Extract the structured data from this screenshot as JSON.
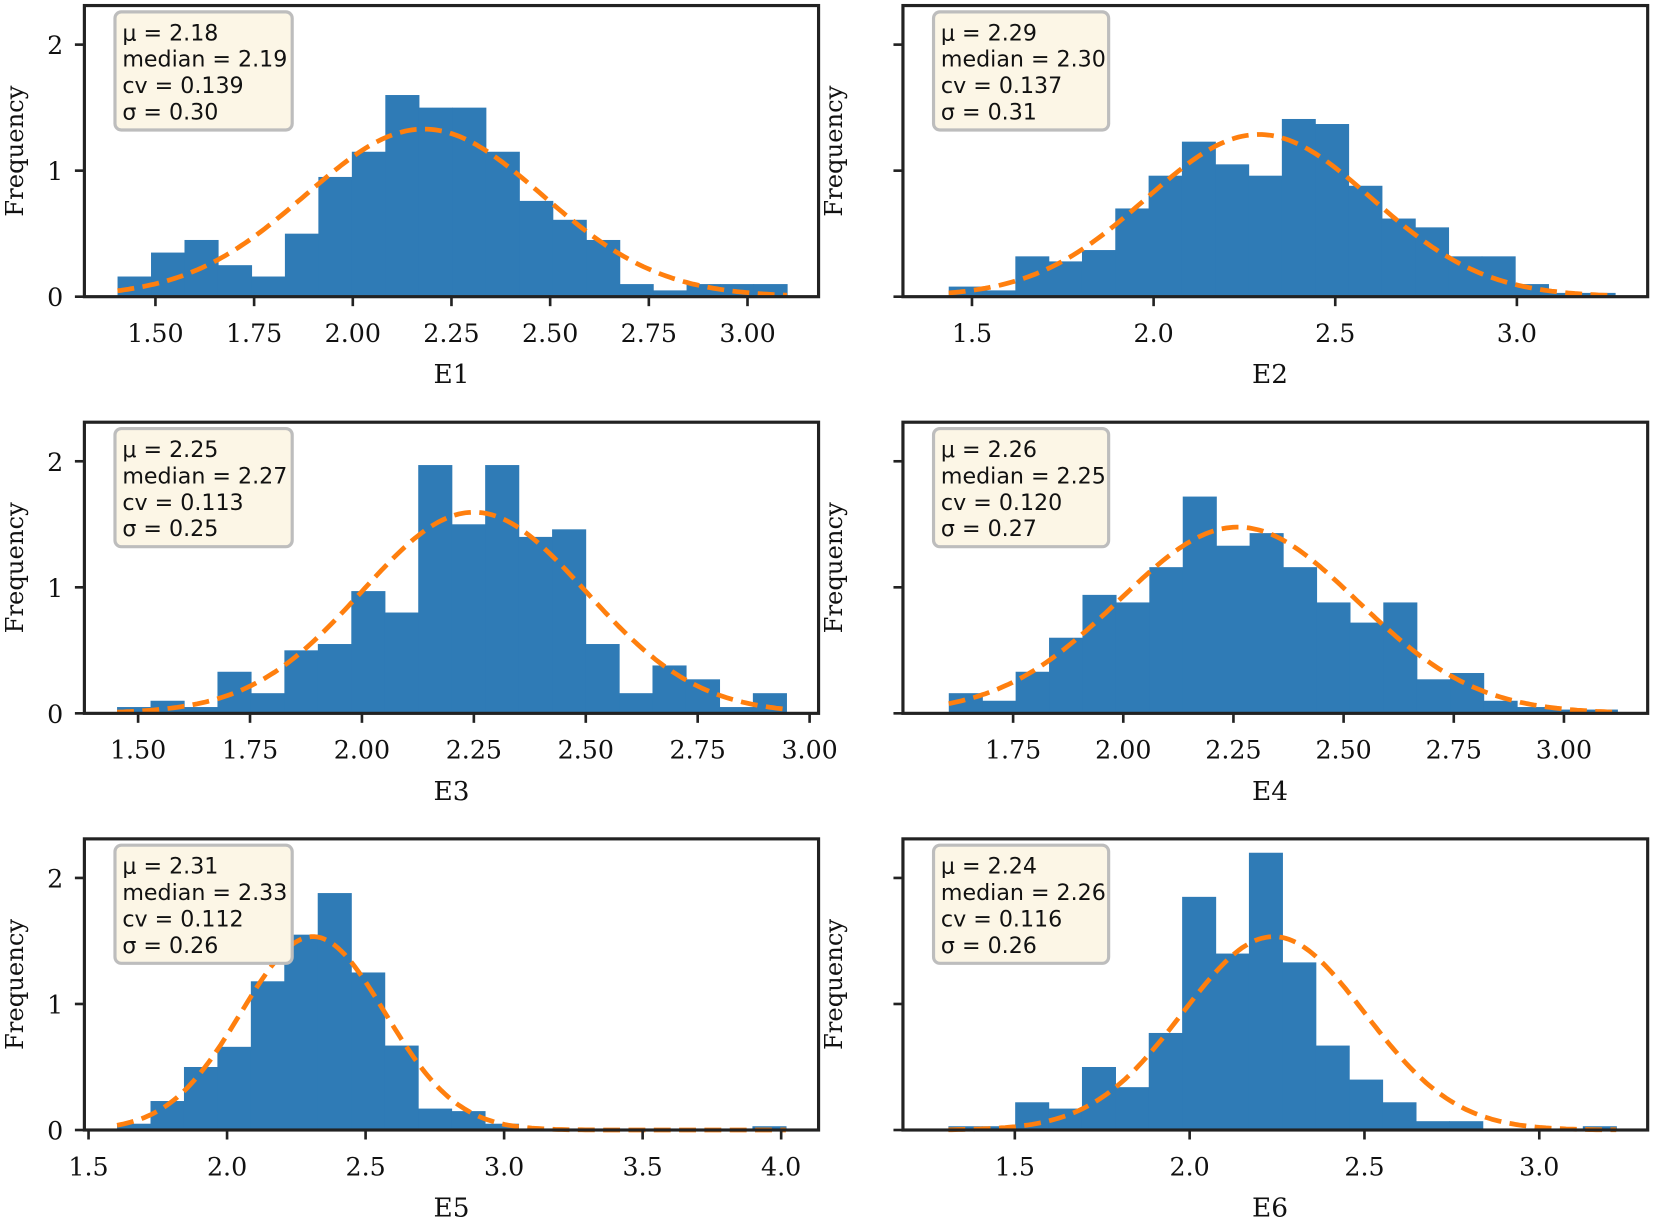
{
  "colors": {
    "bar": "#2f7bb6",
    "fit": "#ff7f0e",
    "legend_bg": "#fcf6e6",
    "legend_border": "#bdbdbd",
    "axis": "#222222"
  },
  "chart_data": [
    {
      "type": "bar",
      "title": "",
      "xlabel": "E1",
      "ylabel": "Frequency",
      "xlim": [
        1.32,
        3.18
      ],
      "ylim": [
        0,
        2.31
      ],
      "xticks": [
        1.5,
        1.75,
        2.0,
        2.25,
        2.5,
        2.75,
        3.0
      ],
      "xtick_labels": [
        "1.50",
        "1.75",
        "2.00",
        "2.25",
        "2.50",
        "2.75",
        "3.00"
      ],
      "yticks": [
        0,
        1,
        2
      ],
      "ytick_labels": [
        "0",
        "1",
        "2"
      ],
      "bin_range": [
        1.404,
        3.1
      ],
      "values": [
        0.16,
        0.35,
        0.45,
        0.25,
        0.16,
        0.5,
        0.95,
        1.15,
        1.6,
        1.5,
        1.5,
        1.15,
        0.76,
        0.61,
        0.45,
        0.1,
        0.05,
        0.1,
        0.1,
        0.1
      ],
      "fit": {
        "mu": 2.18,
        "sigma": 0.3
      },
      "legend": [
        "μ = 2.18",
        "median = 2.19",
        "cv = 0.139",
        "σ = 0.30"
      ]
    },
    {
      "type": "bar",
      "title": "",
      "xlabel": "E2",
      "ylabel": "Frequency",
      "xlim": [
        1.31,
        3.36
      ],
      "ylim": [
        0,
        2.31
      ],
      "xticks": [
        1.5,
        2.0,
        2.5,
        3.0
      ],
      "xtick_labels": [
        "1.5",
        "2.0",
        "2.5",
        "3.0"
      ],
      "yticks": [
        0,
        1,
        2
      ],
      "ytick_labels": [],
      "bin_range": [
        1.436,
        3.27
      ],
      "values": [
        0.08,
        0.05,
        0.32,
        0.28,
        0.37,
        0.7,
        0.96,
        1.23,
        1.05,
        0.96,
        1.41,
        1.37,
        0.88,
        0.62,
        0.55,
        0.32,
        0.32,
        0.1,
        0.03,
        0.03
      ],
      "fit": {
        "mu": 2.29,
        "sigma": 0.31
      },
      "legend": [
        "μ = 2.29",
        "median = 2.30",
        "cv = 0.137",
        "σ = 0.31"
      ]
    },
    {
      "type": "bar",
      "title": "",
      "xlabel": "E3",
      "ylabel": "Frequency",
      "xlim": [
        1.38,
        3.02
      ],
      "ylim": [
        0,
        2.31
      ],
      "xticks": [
        1.5,
        1.75,
        2.0,
        2.25,
        2.5,
        2.75,
        3.0
      ],
      "xtick_labels": [
        "1.50",
        "1.75",
        "2.00",
        "2.25",
        "2.50",
        "2.75",
        "3.00"
      ],
      "yticks": [
        0,
        1,
        2
      ],
      "ytick_labels": [
        "0",
        "1",
        "2"
      ],
      "bin_range": [
        1.453,
        2.948
      ],
      "values": [
        0.05,
        0.1,
        0.05,
        0.33,
        0.16,
        0.5,
        0.55,
        0.97,
        0.8,
        1.97,
        1.5,
        1.97,
        1.4,
        1.46,
        0.55,
        0.16,
        0.38,
        0.27,
        0.05,
        0.16
      ],
      "fit": {
        "mu": 2.25,
        "sigma": 0.25
      },
      "legend": [
        "μ = 2.25",
        "median = 2.27",
        "cv = 0.113",
        "σ = 0.25"
      ]
    },
    {
      "type": "bar",
      "title": "",
      "xlabel": "E4",
      "ylabel": "Frequency",
      "xlim": [
        1.5,
        3.19
      ],
      "ylim": [
        0,
        2.31
      ],
      "xticks": [
        1.75,
        2.0,
        2.25,
        2.5,
        2.75,
        3.0
      ],
      "xtick_labels": [
        "1.75",
        "2.00",
        "2.25",
        "2.50",
        "2.75",
        "3.00"
      ],
      "yticks": [
        0,
        1,
        2
      ],
      "ytick_labels": [],
      "bin_range": [
        1.604,
        3.121
      ],
      "values": [
        0.16,
        0.1,
        0.33,
        0.6,
        0.94,
        0.88,
        1.16,
        1.72,
        1.33,
        1.43,
        1.16,
        0.88,
        0.72,
        0.88,
        0.27,
        0.32,
        0.1,
        0.05,
        0.03,
        0.03
      ],
      "fit": {
        "mu": 2.26,
        "sigma": 0.27
      },
      "legend": [
        "μ = 2.26",
        "median = 2.25",
        "cv = 0.120",
        "σ = 0.27"
      ]
    },
    {
      "type": "bar",
      "title": "",
      "xlabel": "E5",
      "ylabel": "Frequency",
      "xlim": [
        1.485,
        4.135
      ],
      "ylim": [
        0,
        2.31
      ],
      "xticks": [
        1.5,
        2.0,
        2.5,
        3.0,
        3.5,
        4.0
      ],
      "xtick_labels": [
        "1.5",
        "2.0",
        "2.5",
        "3.0",
        "3.5",
        "4.0"
      ],
      "yticks": [
        0,
        1,
        2
      ],
      "ytick_labels": [
        "0",
        "1",
        "2"
      ],
      "bin_range": [
        1.603,
        4.017
      ],
      "values": [
        0.05,
        0.23,
        0.5,
        0.66,
        1.18,
        1.55,
        1.88,
        1.25,
        0.67,
        0.17,
        0.15,
        0.05,
        0,
        0,
        0,
        0,
        0,
        0,
        0,
        0.03
      ],
      "fit": {
        "mu": 2.31,
        "sigma": 0.26
      },
      "legend": [
        "μ = 2.31",
        "median = 2.33",
        "cv = 0.112",
        "σ = 0.26"
      ]
    },
    {
      "type": "bar",
      "title": "",
      "xlabel": "E6",
      "ylabel": "Frequency",
      "xlim": [
        1.18,
        3.31
      ],
      "ylim": [
        0,
        2.31
      ],
      "xticks": [
        1.5,
        2.0,
        2.5,
        3.0
      ],
      "xtick_labels": [
        "1.5",
        "2.0",
        "2.5",
        "3.0"
      ],
      "yticks": [
        0,
        1,
        2
      ],
      "ytick_labels": [],
      "bin_range": [
        1.31,
        3.22
      ],
      "values": [
        0.03,
        0.03,
        0.22,
        0.17,
        0.5,
        0.34,
        0.77,
        1.85,
        1.4,
        2.2,
        1.33,
        0.67,
        0.4,
        0.22,
        0.07,
        0.07,
        0,
        0,
        0,
        0.03
      ],
      "fit": {
        "mu": 2.24,
        "sigma": 0.26
      },
      "legend": [
        "μ = 2.24",
        "median = 2.26",
        "cv = 0.116",
        "σ = 0.26"
      ]
    }
  ]
}
